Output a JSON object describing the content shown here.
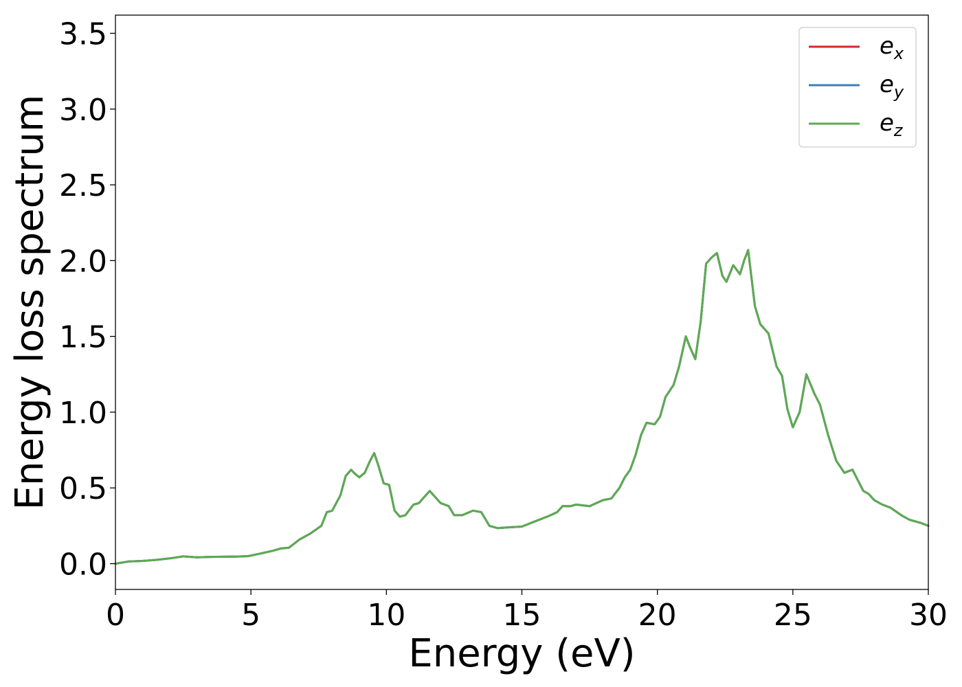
{
  "chart_data": {
    "type": "line",
    "xlabel": "Energy (eV)",
    "ylabel": "Energy loss spectrum",
    "xlim": [
      0,
      30
    ],
    "ylim": [
      -0.17,
      3.62
    ],
    "grid": false,
    "legend_position": "top-right",
    "x_ticks": [
      "0",
      "5",
      "10",
      "15",
      "20",
      "25",
      "30"
    ],
    "y_ticks": [
      "0.0",
      "0.5",
      "1.0",
      "1.5",
      "2.0",
      "2.5",
      "3.0",
      "3.5"
    ],
    "legend": [
      {
        "base": "e",
        "sub": "x",
        "color": "#d62728"
      },
      {
        "base": "e",
        "sub": "y",
        "color": "#3a7fb8"
      },
      {
        "base": "e",
        "sub": "z",
        "color": "#5cab52"
      }
    ],
    "x": [
      0,
      0.5,
      1.0,
      1.5,
      2.0,
      2.5,
      3.0,
      3.5,
      4.0,
      4.5,
      4.9,
      5.3,
      5.8,
      6.1,
      6.4,
      6.8,
      7.2,
      7.6,
      7.8,
      8.0,
      8.3,
      8.5,
      8.7,
      8.8,
      9.0,
      9.2,
      9.4,
      9.55,
      9.7,
      9.9,
      10.1,
      10.3,
      10.5,
      10.7,
      11.0,
      11.2,
      11.4,
      11.6,
      11.75,
      12.0,
      12.3,
      12.5,
      12.8,
      13.2,
      13.5,
      13.8,
      14.1,
      14.5,
      15.0,
      15.5,
      16.0,
      16.3,
      16.5,
      16.8,
      17.0,
      17.5,
      18.0,
      18.3,
      18.6,
      18.8,
      19.0,
      19.2,
      19.4,
      19.6,
      19.9,
      20.1,
      20.3,
      20.6,
      20.8,
      21.05,
      21.2,
      21.4,
      21.6,
      21.8,
      22.0,
      22.2,
      22.4,
      22.55,
      22.8,
      23.05,
      23.2,
      23.35,
      23.6,
      23.8,
      24.1,
      24.4,
      24.6,
      24.8,
      25.0,
      25.25,
      25.5,
      25.8,
      26.0,
      26.3,
      26.6,
      26.9,
      27.2,
      27.4,
      27.6,
      27.8,
      28.0,
      28.3,
      28.6,
      29.0,
      29.3,
      29.7,
      30.0
    ],
    "series": [
      {
        "name": "e_x",
        "color": "#d62728",
        "values": [
          0.0,
          0.015,
          0.018,
          0.025,
          0.035,
          0.048,
          0.042,
          0.045,
          0.046,
          0.047,
          0.05,
          0.065,
          0.085,
          0.1,
          0.105,
          0.16,
          0.2,
          0.25,
          0.34,
          0.35,
          0.45,
          0.58,
          0.62,
          0.6,
          0.57,
          0.6,
          0.68,
          0.73,
          0.65,
          0.53,
          0.52,
          0.35,
          0.31,
          0.32,
          0.39,
          0.4,
          0.44,
          0.48,
          0.45,
          0.4,
          0.38,
          0.32,
          0.32,
          0.35,
          0.34,
          0.25,
          0.235,
          0.24,
          0.245,
          0.28,
          0.315,
          0.34,
          0.38,
          0.38,
          0.39,
          0.38,
          0.42,
          0.43,
          0.5,
          0.57,
          0.62,
          0.72,
          0.85,
          0.93,
          0.92,
          0.97,
          1.1,
          1.18,
          1.3,
          1.5,
          1.43,
          1.35,
          1.6,
          1.98,
          2.02,
          2.05,
          1.9,
          1.86,
          1.97,
          1.91,
          2.0,
          2.07,
          1.7,
          1.58,
          1.52,
          1.3,
          1.24,
          1.02,
          0.9,
          1.0,
          1.25,
          1.12,
          1.05,
          0.85,
          0.68,
          0.6,
          0.62,
          0.55,
          0.48,
          0.46,
          0.42,
          0.39,
          0.37,
          0.32,
          0.29,
          0.27,
          0.25
        ]
      },
      {
        "name": "e_y",
        "color": "#3a7fb8",
        "values": [
          0.0,
          0.015,
          0.018,
          0.025,
          0.035,
          0.048,
          0.042,
          0.045,
          0.046,
          0.047,
          0.05,
          0.065,
          0.085,
          0.1,
          0.105,
          0.16,
          0.2,
          0.25,
          0.34,
          0.35,
          0.45,
          0.58,
          0.62,
          0.6,
          0.57,
          0.6,
          0.68,
          0.73,
          0.65,
          0.53,
          0.52,
          0.35,
          0.31,
          0.32,
          0.39,
          0.4,
          0.44,
          0.48,
          0.45,
          0.4,
          0.38,
          0.32,
          0.32,
          0.35,
          0.34,
          0.25,
          0.235,
          0.24,
          0.245,
          0.28,
          0.315,
          0.34,
          0.38,
          0.38,
          0.39,
          0.38,
          0.42,
          0.43,
          0.5,
          0.57,
          0.62,
          0.72,
          0.85,
          0.93,
          0.92,
          0.97,
          1.1,
          1.18,
          1.3,
          1.5,
          1.43,
          1.35,
          1.6,
          1.98,
          2.02,
          2.05,
          1.9,
          1.86,
          1.97,
          1.91,
          2.0,
          2.07,
          1.7,
          1.58,
          1.52,
          1.3,
          1.24,
          1.02,
          0.9,
          1.0,
          1.25,
          1.12,
          1.05,
          0.85,
          0.68,
          0.6,
          0.62,
          0.55,
          0.48,
          0.46,
          0.42,
          0.39,
          0.37,
          0.32,
          0.29,
          0.27,
          0.25
        ]
      },
      {
        "name": "e_z",
        "color": "#5cab52",
        "values": [
          0.0,
          0.015,
          0.018,
          0.025,
          0.035,
          0.048,
          0.042,
          0.045,
          0.046,
          0.047,
          0.05,
          0.065,
          0.085,
          0.1,
          0.105,
          0.16,
          0.2,
          0.25,
          0.34,
          0.35,
          0.45,
          0.58,
          0.62,
          0.6,
          0.57,
          0.6,
          0.68,
          0.73,
          0.65,
          0.53,
          0.52,
          0.35,
          0.31,
          0.32,
          0.39,
          0.4,
          0.44,
          0.48,
          0.45,
          0.4,
          0.38,
          0.32,
          0.32,
          0.35,
          0.34,
          0.25,
          0.235,
          0.24,
          0.245,
          0.28,
          0.315,
          0.34,
          0.38,
          0.38,
          0.39,
          0.38,
          0.42,
          0.43,
          0.5,
          0.57,
          0.62,
          0.72,
          0.85,
          0.93,
          0.92,
          0.97,
          1.1,
          1.18,
          1.3,
          1.5,
          1.43,
          1.35,
          1.6,
          1.98,
          2.02,
          2.05,
          1.9,
          1.86,
          1.97,
          1.91,
          2.0,
          2.07,
          1.7,
          1.58,
          1.52,
          1.3,
          1.24,
          1.02,
          0.9,
          1.0,
          1.25,
          1.12,
          1.05,
          0.85,
          0.68,
          0.6,
          0.62,
          0.55,
          0.48,
          0.46,
          0.42,
          0.39,
          0.37,
          0.32,
          0.29,
          0.27,
          0.25
        ]
      }
    ]
  }
}
